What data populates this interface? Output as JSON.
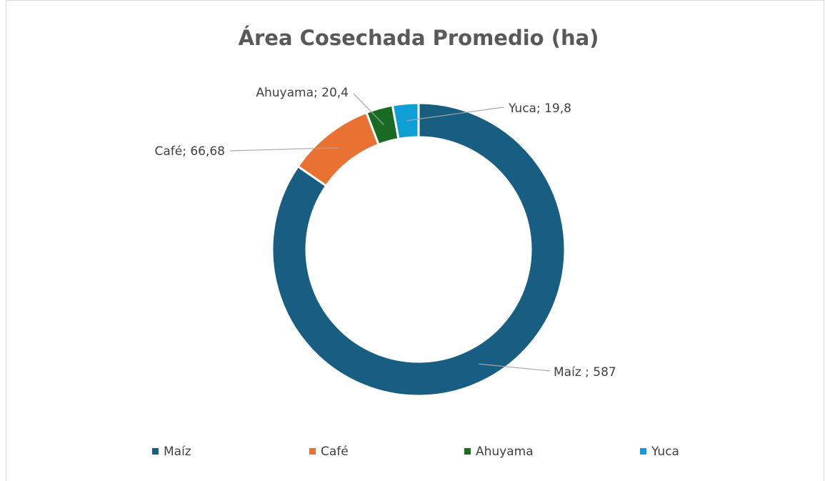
{
  "chart_data": {
    "type": "pie",
    "donut": true,
    "title": "Área Cosechada Promedio (ha)",
    "categories": [
      "Maíz",
      "Café",
      "Ahuyama",
      "Yuca"
    ],
    "values": [
      587,
      66.68,
      20.4,
      19.8
    ],
    "value_labels": [
      "Maíz ; 587",
      "Café; 66,68",
      "Ahuyama; 20,4",
      "Yuca; 19,8"
    ],
    "colors": [
      "#175e82",
      "#e97132",
      "#196b24",
      "#0f9ed5"
    ],
    "legend": "bottom"
  }
}
